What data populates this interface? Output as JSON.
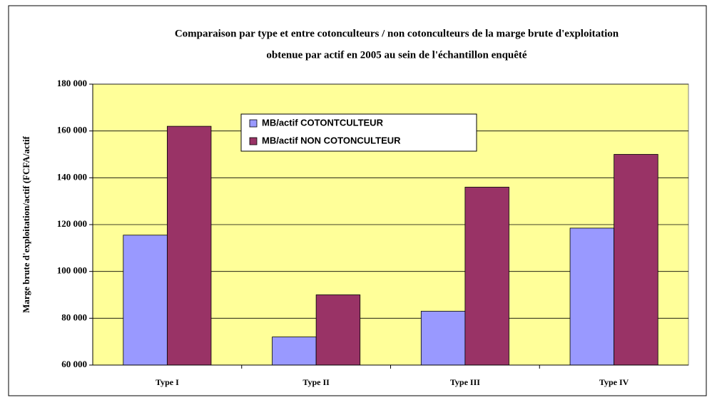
{
  "chart_data": {
    "type": "bar",
    "title": [
      "Comparaison  par type et entre cotonculteurs / non cotonculteurs de la marge brute d'exploitation",
      "obtenue par actif en 2005 au sein de l'échantillon enquêté"
    ],
    "y_label": "Marge brute d'exploitation/actif  (FCFA/actif",
    "categories": [
      "Type I",
      "Type II",
      "Type III",
      "Type IV"
    ],
    "series": [
      {
        "name": "MB/actif COTONTCULTEUR",
        "color": "#9999ff",
        "values": [
          115500,
          72000,
          83000,
          118500
        ]
      },
      {
        "name": "MB/actif NON COTONCULTEUR",
        "color": "#993366",
        "values": [
          162000,
          90000,
          136000,
          150000
        ]
      }
    ],
    "ylim": [
      60000,
      180000
    ],
    "yticks": [
      {
        "value": 60000,
        "label": "60 000"
      },
      {
        "value": 80000,
        "label": "80 000"
      },
      {
        "value": 100000,
        "label": "100 000"
      },
      {
        "value": 120000,
        "label": "120 000"
      },
      {
        "value": 140000,
        "label": "140 000"
      },
      {
        "value": 160000,
        "label": "160 000"
      },
      {
        "value": 180000,
        "label": "180 000"
      }
    ],
    "grid": true,
    "plot_background": "#ffff99"
  }
}
